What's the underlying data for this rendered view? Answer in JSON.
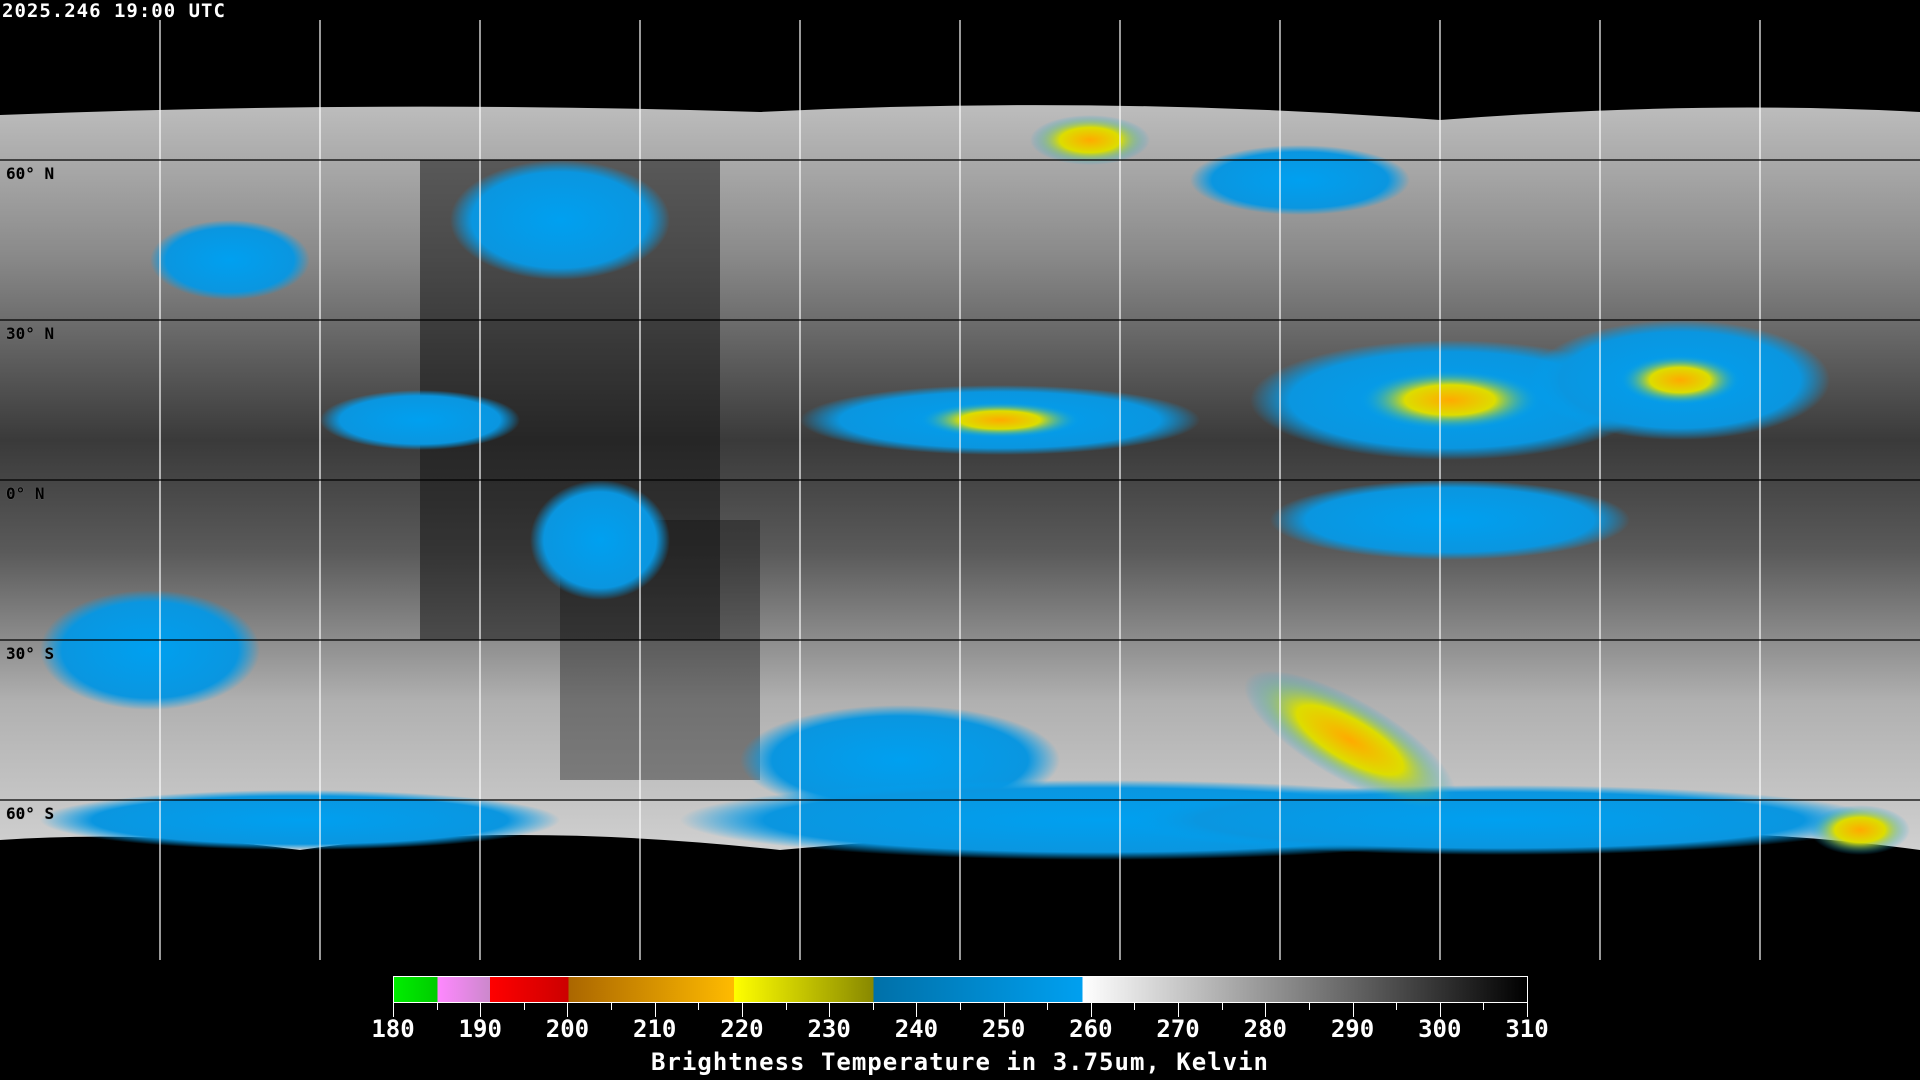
{
  "header": {
    "timestamp": "2025.246 19:00 UTC"
  },
  "map": {
    "projection": "equirectangular",
    "grid_color": "#ffffff",
    "latitude_labels": [
      "60° N",
      "30° N",
      "0° N",
      "30° S",
      "60° S"
    ],
    "latitude_values": [
      60,
      30,
      0,
      -30,
      -60
    ],
    "longitude_grid_step_deg": 30
  },
  "colorbar": {
    "min": 180,
    "max": 310,
    "tick_labels": [
      "180",
      "190",
      "200",
      "210",
      "220",
      "230",
      "240",
      "250",
      "260",
      "270",
      "280",
      "290",
      "300",
      "310"
    ],
    "segments": [
      {
        "from": 180,
        "to": 185,
        "colors": [
          "#00ee00",
          "#00cc00"
        ]
      },
      {
        "from": 185,
        "to": 191,
        "colors": [
          "#ff88ff",
          "#cc88cc"
        ]
      },
      {
        "from": 191,
        "to": 200,
        "colors": [
          "#ff0000",
          "#cc0000"
        ]
      },
      {
        "from": 200,
        "to": 219,
        "colors": [
          "#aa6600",
          "#ffbb00"
        ]
      },
      {
        "from": 219,
        "to": 235,
        "colors": [
          "#ffff00",
          "#888800"
        ]
      },
      {
        "from": 235,
        "to": 259,
        "colors": [
          "#0070a8",
          "#00a0f0"
        ]
      },
      {
        "from": 259,
        "to": 310,
        "colors": [
          "#ffffff",
          "#000000"
        ]
      }
    ],
    "title": "Brightness Temperature in 3.75um, Kelvin"
  }
}
